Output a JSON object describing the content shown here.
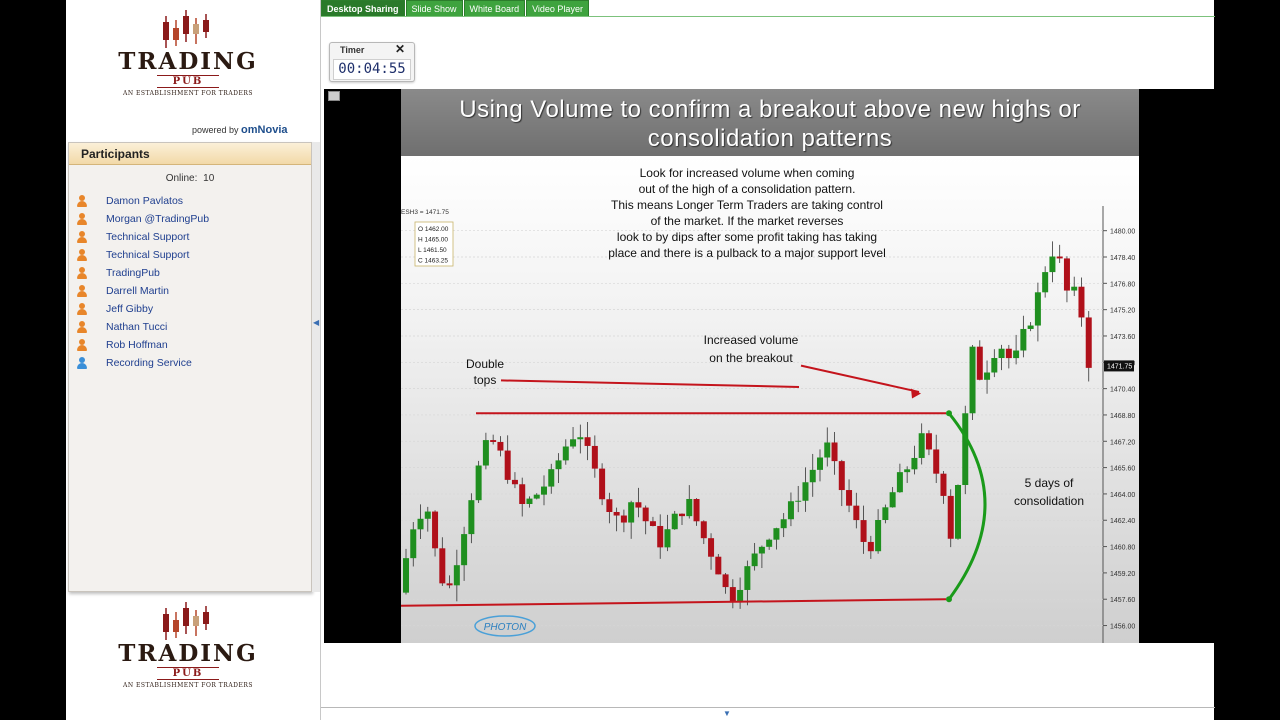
{
  "logo": {
    "word": "TRADING",
    "pub": "PUB",
    "sub": "AN ESTABLISHMENT FOR TRADERS"
  },
  "powered": {
    "prefix": "powered by",
    "brand": "omNovia"
  },
  "participants": {
    "title": "Participants",
    "online_label": "Online:",
    "online_count": "10",
    "items": [
      {
        "name": "Damon Pavlatos",
        "role": "presenter"
      },
      {
        "name": "Morgan @TradingPub",
        "role": "attendee"
      },
      {
        "name": "Technical Support",
        "role": "attendee"
      },
      {
        "name": "Technical Support",
        "role": "attendee"
      },
      {
        "name": "TradingPub",
        "role": "attendee"
      },
      {
        "name": "Darrell Martin",
        "role": "attendee"
      },
      {
        "name": "Jeff Gibby",
        "role": "attendee"
      },
      {
        "name": "Nathan Tucci",
        "role": "attendee"
      },
      {
        "name": "Rob Hoffman",
        "role": "attendee"
      },
      {
        "name": "Recording Service",
        "role": "service"
      }
    ]
  },
  "tabs": [
    {
      "label": "Desktop Sharing",
      "active": true
    },
    {
      "label": "Slide Show",
      "active": false
    },
    {
      "label": "White Board",
      "active": false
    },
    {
      "label": "Video Player",
      "active": false
    }
  ],
  "timer": {
    "label": "Timer",
    "close": "✕",
    "value": "00:04:55"
  },
  "slide": {
    "title_line1": "Using Volume to confirm a breakout above new highs or",
    "title_line2": "consolidation patterns"
  },
  "chart_data": {
    "type": "candlestick",
    "symbol_label": "ESH3 = 1471.75",
    "ohlc_box": [
      "O  1462.00",
      "H  1465.00",
      "L  1461.50",
      "C  1463.25"
    ],
    "ylim": [
      1455.0,
      1481.5
    ],
    "y_ticks": [
      "1480.00",
      "1478.40",
      "1476.80",
      "1475.20",
      "1473.60",
      "1472.00",
      "1470.40",
      "1468.80",
      "1467.20",
      "1465.60",
      "1464.00",
      "1462.40",
      "1460.80",
      "1459.20",
      "1457.60",
      "1456.00"
    ],
    "last_price": "1471.75",
    "annotations": {
      "text_main": [
        "Look for increased volume when coming",
        "out of the high of a consolidation pattern.",
        "This means Longer Term Traders are taking control",
        "of the market. If the market reverses",
        "look to by dips after some profit taking has taking",
        "place and there is a pulback to a major support level"
      ],
      "double_tops": [
        "Double",
        "tops"
      ],
      "increased_volume": [
        "Increased volume",
        "on the breakout"
      ],
      "consolidation": [
        "5 days of",
        "consolidation"
      ]
    },
    "watermark": "PHOTON",
    "colors": {
      "up": "#1f8f1f",
      "down": "#b0101a",
      "lines": "#c4141c",
      "bracket": "#1a9a1a"
    }
  }
}
